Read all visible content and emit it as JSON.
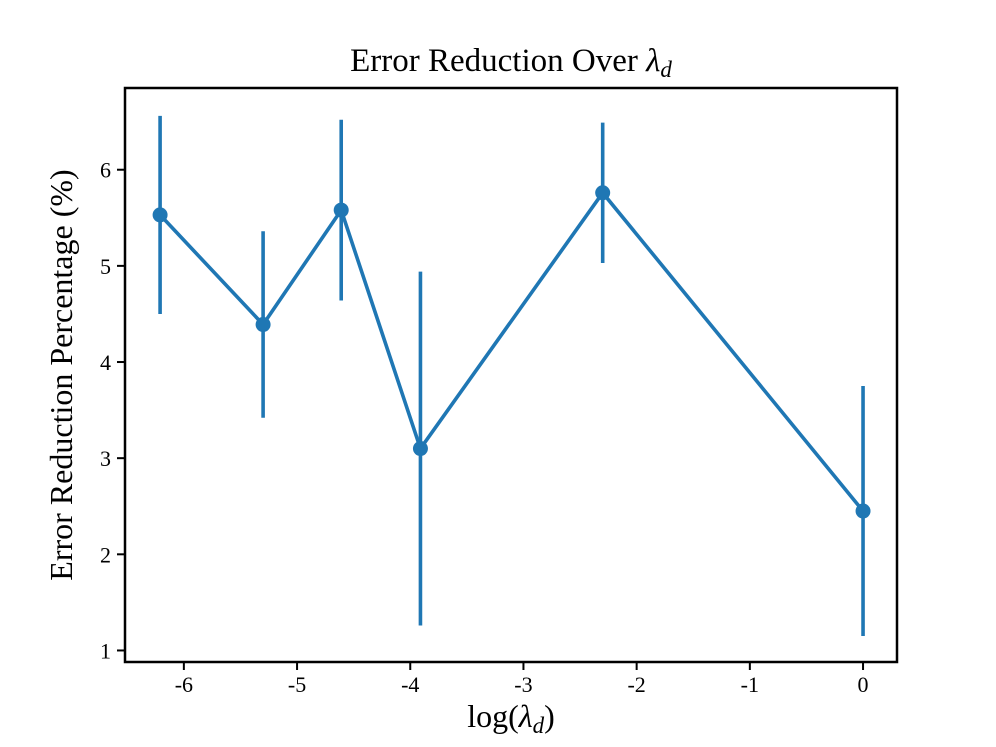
{
  "figure": {
    "title": {
      "prefix": "Error Reduction Over ",
      "symbol": "λ",
      "subscript": "d"
    },
    "xlabel": {
      "prefix": "log(",
      "symbol": "λ",
      "subscript": "d",
      "suffix": ")"
    },
    "ylabel": "Error Reduction Percentage (%)"
  },
  "chart_data": {
    "type": "line",
    "title": "Error Reduction Over λ_d",
    "xlabel": "log(λ_d)",
    "ylabel": "Error Reduction Percentage (%)",
    "x": [
      -6.21,
      -5.3,
      -4.61,
      -3.91,
      -2.3,
      0.0
    ],
    "y": [
      5.53,
      4.39,
      5.58,
      3.1,
      5.76,
      2.45
    ],
    "yerr": [
      1.03,
      0.97,
      0.94,
      1.84,
      0.73,
      1.3
    ],
    "xtick_values": [
      -6,
      -5,
      -4,
      -3,
      -2,
      -1,
      0
    ],
    "xtick_labels": [
      "-6",
      "-5",
      "-4",
      "-3",
      "-2",
      "-1",
      "0"
    ],
    "ytick_values": [
      1,
      2,
      3,
      4,
      5,
      6
    ],
    "ytick_labels": [
      "1",
      "2",
      "3",
      "4",
      "5",
      "6"
    ],
    "xlim": [
      -6.52,
      0.3
    ],
    "ylim": [
      0.88,
      6.85
    ],
    "line_color": "#1f77b4",
    "axis_color": "#000000",
    "background": "#ffffff",
    "marker": "circle",
    "marker_radius": 7.5,
    "line_width": 3.6,
    "grid": false,
    "legend": false,
    "error_bars": true,
    "error_bar_caps": false
  }
}
